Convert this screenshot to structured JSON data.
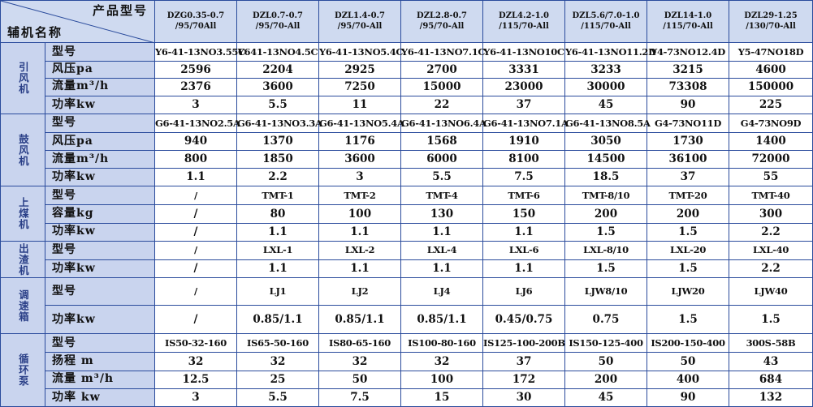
{
  "header": {
    "product_label": "产品型号",
    "aux_label": "辅机名称",
    "models": [
      [
        "DZG0.35-0.7",
        "/95/70All"
      ],
      [
        "DZL0.7-0.7",
        "/95/70-All"
      ],
      [
        "DZL1.4-0.7",
        "/95/70-All"
      ],
      [
        "DZL2.8-0.7",
        "/95/70-All"
      ],
      [
        "DZL4.2-1.0",
        "/115/70-All"
      ],
      [
        "DZL5.6/7.0-1.0",
        "/115/70-All"
      ],
      [
        "DZL14-1.0",
        "/115/70-All"
      ],
      [
        "DZL29-1.25",
        "/130/70-All"
      ]
    ]
  },
  "groups": [
    {
      "name": "引风机",
      "rows": [
        {
          "param": "型号",
          "values": [
            "Y6-41-13NO3.55C",
            "Y641-13NO4.5C",
            "Y6-41-13NO5.4C",
            "Y6-41-13NO7.1C",
            "Y6-41-13NO10C",
            "Y6-41-13NO11.2D",
            "Y4-73NO12.4D",
            "Y5-47NO18D"
          ]
        },
        {
          "param": "风压pa",
          "values": [
            "2596",
            "2204",
            "2925",
            "2700",
            "3331",
            "3233",
            "3215",
            "4600"
          ]
        },
        {
          "param": "流量m³/h",
          "values": [
            "2376",
            "3600",
            "7250",
            "15000",
            "23000",
            "30000",
            "73308",
            "150000"
          ]
        },
        {
          "param": "功率kw",
          "values": [
            "3",
            "5.5",
            "11",
            "22",
            "37",
            "45",
            "90",
            "225"
          ]
        }
      ]
    },
    {
      "name": "鼓风机",
      "rows": [
        {
          "param": "型号",
          "values": [
            "G6-41-13NO2.5A",
            "G6-41-13NO3.3A",
            "G6-41-13NO5.4A",
            "G6-41-13NO6.4A",
            "G6-41-13NO7.1A",
            "G6-41-13NO8.5A",
            "G4-73NO11D",
            "G4-73NO9D"
          ]
        },
        {
          "param": "风压pa",
          "values": [
            "940",
            "1370",
            "1176",
            "1568",
            "1910",
            "3050",
            "1730",
            "1400"
          ]
        },
        {
          "param": "流量m³/h",
          "values": [
            "800",
            "1850",
            "3600",
            "6000",
            "8100",
            "14500",
            "36100",
            "72000"
          ]
        },
        {
          "param": "功率kw",
          "values": [
            "1.1",
            "2.2",
            "3",
            "5.5",
            "7.5",
            "18.5",
            "37",
            "55"
          ]
        }
      ]
    },
    {
      "name": "上煤机",
      "rows": [
        {
          "param": "型号",
          "values": [
            "/",
            "TMT-1",
            "TMT-2",
            "TMT-4",
            "TMT-6",
            "TMT-8/10",
            "TMT-20",
            "TMT-40"
          ]
        },
        {
          "param": "容量kg",
          "values": [
            "/",
            "80",
            "100",
            "130",
            "150",
            "200",
            "200",
            "300"
          ]
        },
        {
          "param": "功率kw",
          "values": [
            "/",
            "1.1",
            "1.1",
            "1.1",
            "1.1",
            "1.5",
            "1.5",
            "2.2"
          ]
        }
      ]
    },
    {
      "name": "出渣机",
      "rows": [
        {
          "param": "型号",
          "values": [
            "/",
            "LXL-1",
            "LXL-2",
            "LXL-4",
            "LXL-6",
            "LXL-8/10",
            "LXL-20",
            "LXL-40"
          ]
        },
        {
          "param": "功率kw",
          "values": [
            "/",
            "1.1",
            "1.1",
            "1.1",
            "1.1",
            "1.5",
            "1.5",
            "2.2"
          ]
        }
      ]
    },
    {
      "name": "调速箱",
      "rows": [
        {
          "param": "型号",
          "values": [
            "/",
            "LJ1",
            "LJ2",
            "LJ4",
            "LJ6",
            "LJW8/10",
            "LJW20",
            "LJW40"
          ]
        },
        {
          "param": "功率kw",
          "values": [
            "/",
            "0.85/1.1",
            "0.85/1.1",
            "0.85/1.1",
            "0.45/0.75",
            "0.75",
            "1.5",
            "1.5"
          ]
        }
      ]
    },
    {
      "name": "循环泵",
      "rows": [
        {
          "param": "型号",
          "values": [
            "IS50-32-160",
            "IS65-50-160",
            "IS80-65-160",
            "IS100-80-160",
            "IS125-100-200B",
            "IS150-125-400",
            "IS200-150-400",
            "300S-58B"
          ]
        },
        {
          "param": "扬程 m",
          "values": [
            "32",
            "32",
            "32",
            "32",
            "37",
            "50",
            "50",
            "43"
          ]
        },
        {
          "param": "流量 m³/h",
          "values": [
            "12.5",
            "25",
            "50",
            "100",
            "172",
            "200",
            "400",
            "684"
          ]
        },
        {
          "param": "功率 kw",
          "values": [
            "3",
            "5.5",
            "7.5",
            "15",
            "30",
            "45",
            "90",
            "132"
          ]
        }
      ]
    }
  ]
}
